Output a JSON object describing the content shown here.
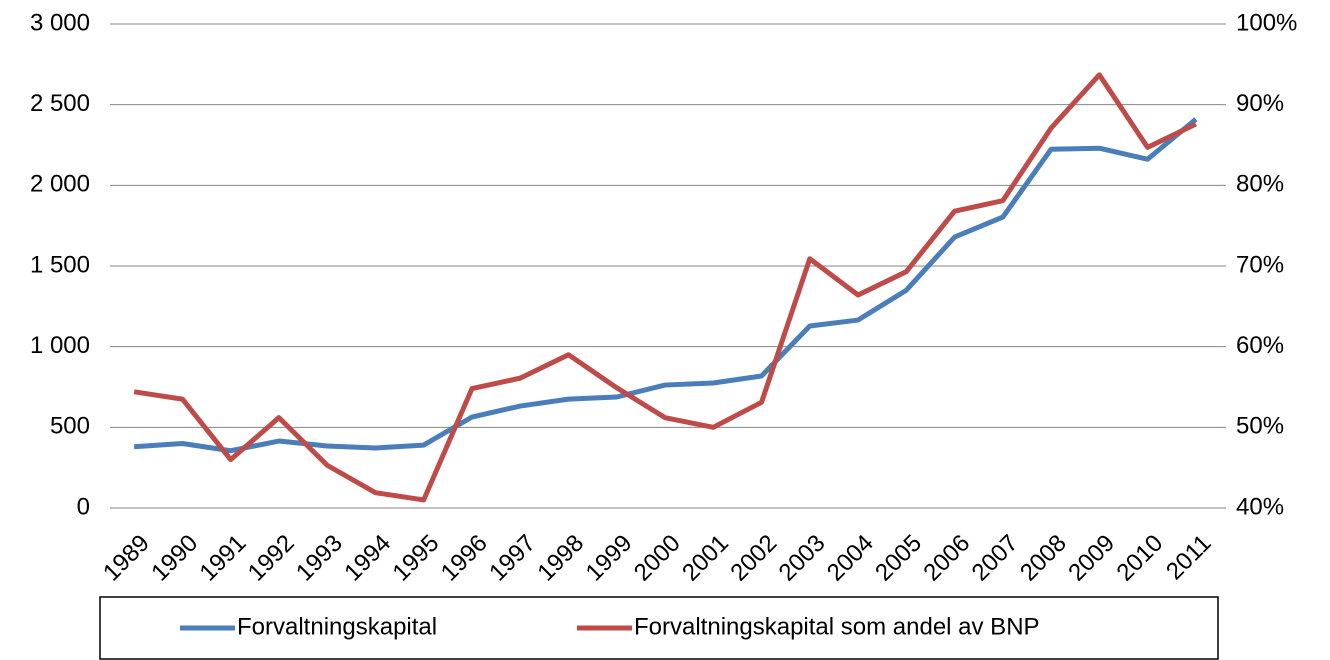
{
  "chart_data": {
    "type": "line",
    "categories": [
      "1989",
      "1990",
      "1991",
      "1992",
      "1993",
      "1994",
      "1995",
      "1996",
      "1997",
      "1998",
      "1999",
      "2000",
      "2001",
      "2002",
      "2003",
      "2004",
      "2005",
      "2006",
      "2007",
      "2008",
      "2009",
      "2010",
      "2011"
    ],
    "series": [
      {
        "name": "Forvaltningskapital",
        "color": "#4a7ebb",
        "values": [
          380,
          400,
          355,
          415,
          384,
          372,
          390,
          564,
          632,
          675,
          688,
          762,
          775,
          818,
          1128,
          1165,
          1350,
          1679,
          1803,
          2224,
          2230,
          2162,
          2410
        ]
      },
      {
        "name": "Forvaltningskapital som andel av BNP",
        "color": "#be4b48",
        "axis": "y2",
        "values": [
          54.4,
          53.5,
          46.0,
          51.2,
          45.3,
          41.9,
          41.0,
          54.8,
          56.1,
          59.0,
          54.9,
          51.2,
          50.0,
          53.1,
          70.9,
          66.4,
          69.3,
          76.8,
          78.1,
          87.1,
          93.7,
          84.7,
          87.6
        ]
      }
    ],
    "ylim": [
      0,
      3000
    ],
    "yticks": [
      0,
      500,
      {
        "value": 1000,
        "label": "1 000"
      },
      {
        "value": 1500,
        "label": "1 500"
      },
      {
        "value": 2000,
        "label": "2 000"
      },
      {
        "value": 2500,
        "label": "2 500"
      },
      {
        "value": 3000,
        "label": "3 000"
      }
    ],
    "y2lim": [
      40,
      100
    ],
    "y2ticks": [
      {
        "value": 40,
        "label": "40%"
      },
      {
        "value": 50,
        "label": "50%"
      },
      {
        "value": 60,
        "label": "60%"
      },
      {
        "value": 70,
        "label": "70%"
      },
      {
        "value": 80,
        "label": "80%"
      },
      {
        "value": 90,
        "label": "90%"
      },
      {
        "value": 100,
        "label": "100%"
      }
    ],
    "grid": true,
    "legend": "bottom"
  }
}
